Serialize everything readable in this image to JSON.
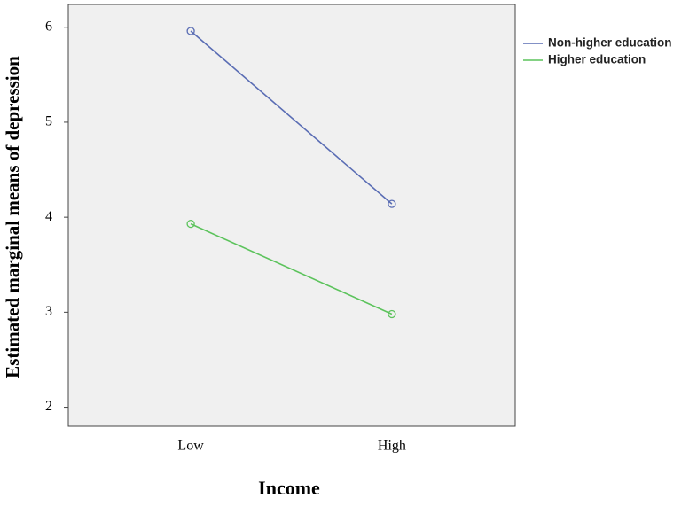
{
  "chart_data": {
    "type": "line",
    "x_label": "Income",
    "y_label": "Estimated marginal means of depression",
    "categories": [
      "Low",
      "High"
    ],
    "series": [
      {
        "name": "Non-higher education",
        "color": "#5a6db4",
        "values": [
          5.96,
          4.14
        ]
      },
      {
        "name": "Higher education",
        "color": "#5cc35c",
        "values": [
          3.93,
          2.98
        ]
      }
    ],
    "ylim": [
      1.8,
      6.24
    ],
    "yticks": [
      2,
      3,
      4,
      5,
      6
    ],
    "grid": false,
    "legend": "outside-right-top"
  }
}
